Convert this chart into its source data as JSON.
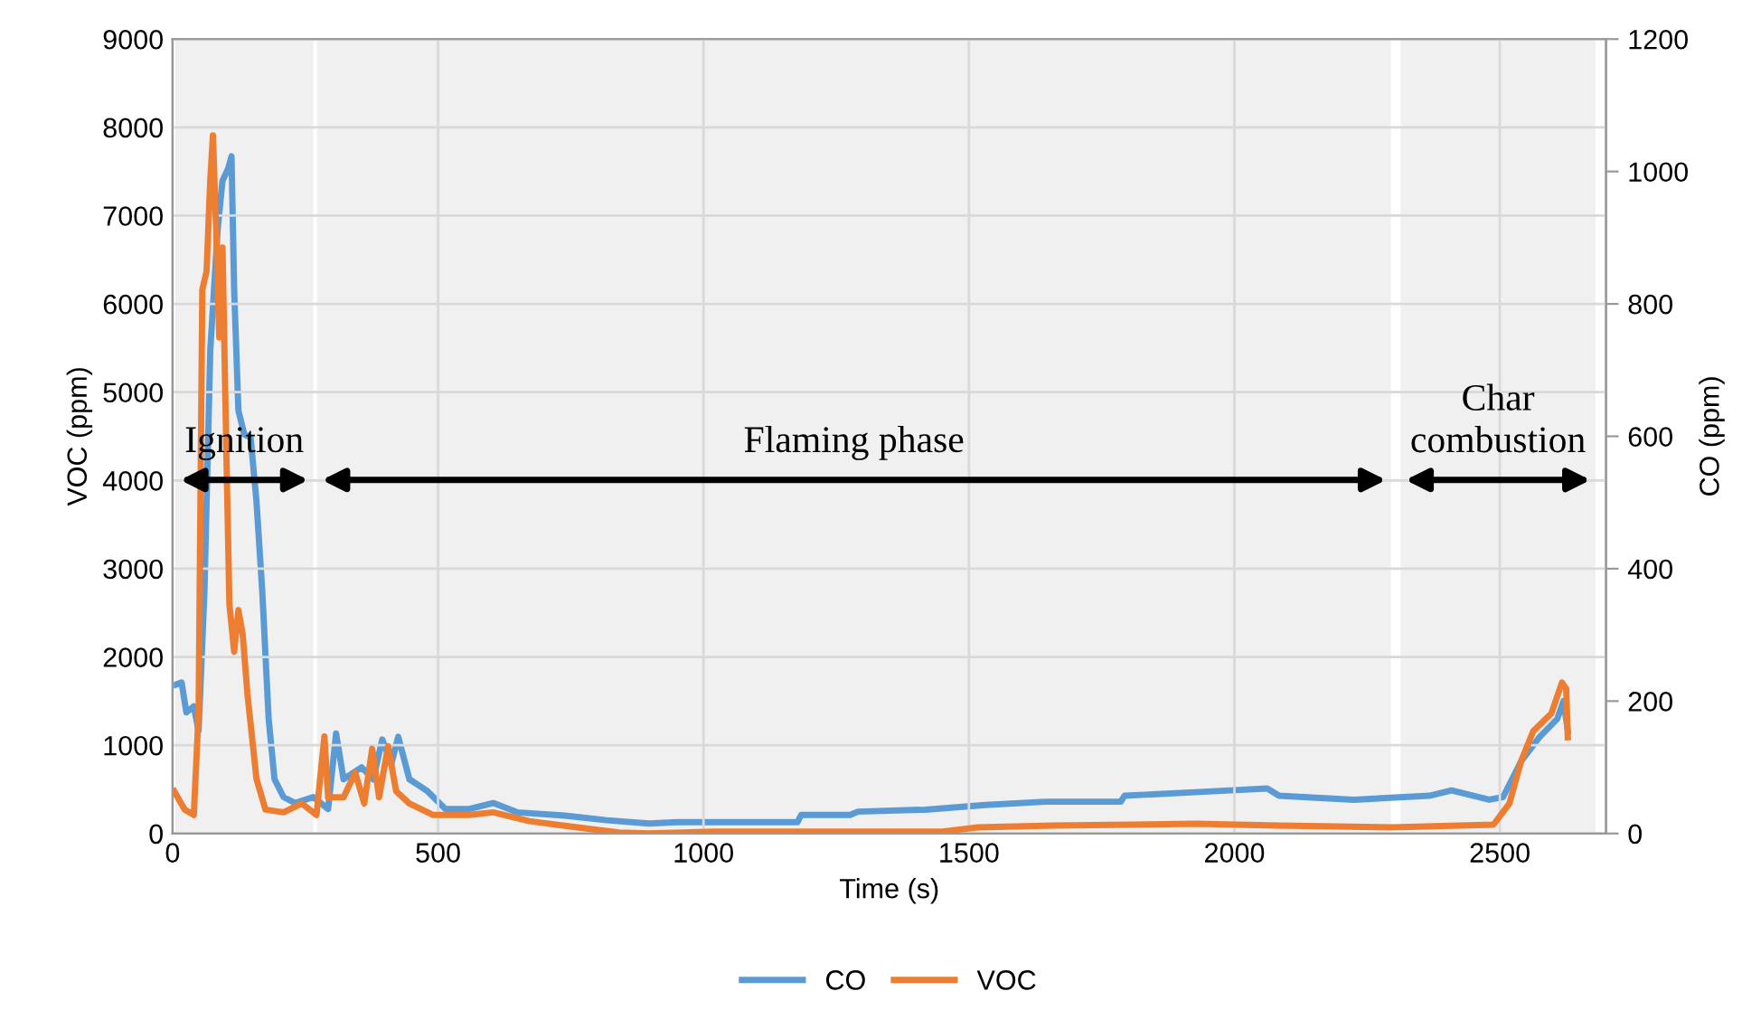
{
  "chart_data": {
    "type": "line",
    "xlabel": "Time (s)",
    "ylabel": "VOC (ppm)",
    "y2label": "CO (ppm)",
    "xlim": [
      0,
      2700
    ],
    "xticks": [
      0,
      500,
      1000,
      1500,
      2000,
      2500
    ],
    "ylim": [
      0,
      9000
    ],
    "yticks": [
      0,
      1000,
      2000,
      3000,
      4000,
      5000,
      6000,
      7000,
      8000,
      9000
    ],
    "y2lim": [
      0,
      1200
    ],
    "y2ticks": [
      0,
      200,
      400,
      600,
      800,
      1000,
      1200
    ],
    "grid": true,
    "legend": "bottom",
    "marker": "none",
    "line_style": "solid",
    "series": [
      {
        "name": "CO",
        "color": "#5b9bd5",
        "axis": "y2",
        "x": [
          3,
          17,
          26,
          40,
          49,
          60,
          71,
          85,
          94,
          105,
          111,
          116,
          124,
          135,
          147,
          158,
          169,
          181,
          192,
          209,
          231,
          265,
          293,
          308,
          322,
          356,
          378,
          395,
          412,
          425,
          446,
          480,
          514,
          559,
          604,
          649,
          739,
          818,
          897,
          951,
          1177,
          1184,
          1276,
          1291,
          1418,
          1531,
          1644,
          1786,
          1793,
          1942,
          2062,
          2084,
          2225,
          2367,
          2409,
          2480,
          2506,
          2540,
          2574,
          2608,
          2620,
          2628
        ],
        "values": [
          224,
          228,
          183,
          192,
          155,
          365,
          730,
          913,
          986,
          1005,
          1023,
          822,
          639,
          603,
          598,
          502,
          365,
          173,
          82,
          55,
          46,
          55,
          37,
          151,
          82,
          100,
          82,
          142,
          105,
          146,
          82,
          64,
          37,
          37,
          46,
          32,
          27,
          20,
          15,
          17,
          17,
          28,
          28,
          33,
          36,
          43,
          48,
          48,
          57,
          63,
          68,
          57,
          51,
          57,
          65,
          51,
          55,
          109,
          145,
          173,
          200,
          155
        ]
      },
      {
        "name": "VOC",
        "color": "#ed7d31",
        "x": [
          3,
          23,
          40,
          49,
          56,
          64,
          71,
          76,
          82,
          88,
          94,
          102,
          107,
          116,
          124,
          132,
          141,
          158,
          175,
          209,
          243,
          271,
          286,
          293,
          322,
          344,
          361,
          376,
          389,
          406,
          421,
          446,
          491,
          559,
          604,
          672,
          762,
          841,
          897,
          1021,
          1446,
          1517,
          1658,
          1927,
          2084,
          2296,
          2488,
          2518,
          2540,
          2563,
          2597,
          2617,
          2625,
          2628
        ],
        "values": [
          480,
          270,
          210,
          1370,
          6160,
          6370,
          7400,
          7910,
          6850,
          5620,
          6640,
          4110,
          2600,
          2060,
          2530,
          2260,
          1580,
          620,
          270,
          240,
          340,
          210,
          1100,
          410,
          410,
          690,
          340,
          960,
          410,
          990,
          480,
          340,
          210,
          210,
          240,
          140,
          70,
          10,
          0,
          20,
          20,
          70,
          90,
          110,
          90,
          70,
          100,
          340,
          820,
          1160,
          1360,
          1710,
          1640,
          1090
        ]
      }
    ],
    "bands": [
      {
        "axis": "x",
        "from": 5,
        "to": 265,
        "label": "Ignition"
      },
      {
        "axis": "x",
        "from": 272,
        "to": 2295,
        "label": "Flaming phase"
      },
      {
        "axis": "x",
        "from": 2313,
        "to": 2680,
        "label": "Char\ncombustion"
      }
    ]
  }
}
